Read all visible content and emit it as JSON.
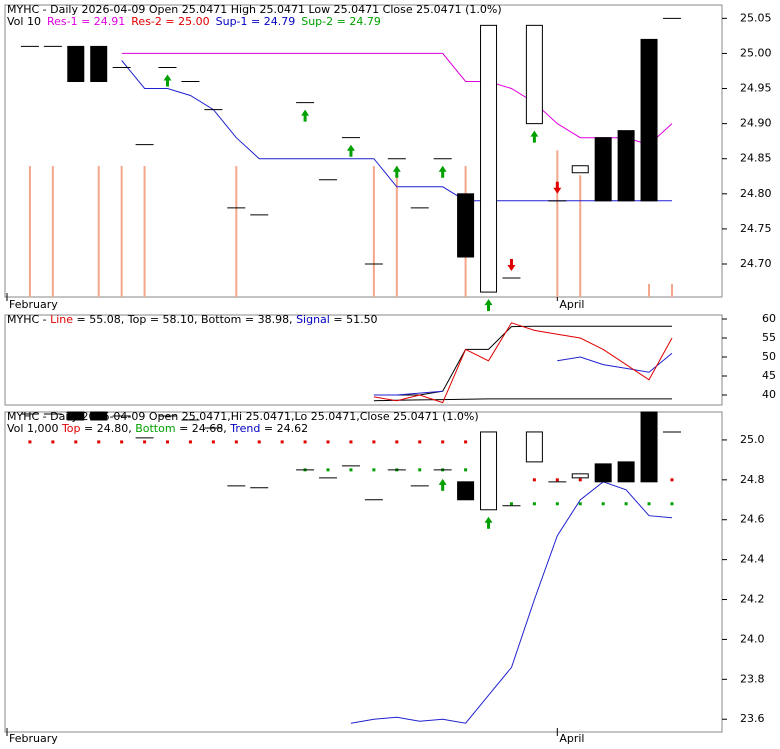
{
  "chart_data": [
    {
      "type": "candlestick",
      "header": [
        {
          "text": "MYHC - Daily 2026-04-09 Open 25.0471 High 25.0471 Low 25.0471 Close 25.0471 (1.0%)",
          "color": "#000000"
        }
      ],
      "header2": [
        {
          "text": "Vol 10",
          "color": "#000000"
        },
        {
          "text": "Res-1 = 24.91",
          "color": "#e000e0"
        },
        {
          "text": "Res-2 = 25.00",
          "color": "#e00000"
        },
        {
          "text": "Sup-1 = 24.79",
          "color": "#0000c0"
        },
        {
          "text": "Sup-2 = 24.79",
          "color": "#00a000"
        }
      ],
      "categories": [
        "February",
        null,
        null,
        null,
        null,
        null,
        null,
        null,
        null,
        null,
        null,
        null,
        null,
        null,
        null,
        null,
        null,
        null,
        null,
        null,
        null,
        null,
        null,
        null,
        "April",
        null,
        null,
        null,
        null,
        null
      ],
      "open": [
        null,
        25.01,
        25.01,
        25.01,
        25.01,
        24.98,
        24.87,
        24.98,
        24.96,
        24.92,
        24.78,
        24.77,
        null,
        24.93,
        24.82,
        24.88,
        24.7,
        24.85,
        24.78,
        24.85,
        24.8,
        24.66,
        24.68,
        24.9,
        24.79,
        24.83,
        24.88,
        24.89,
        25.02,
        25.05
      ],
      "close": [
        null,
        25.01,
        25.01,
        24.96,
        24.96,
        24.98,
        24.87,
        24.98,
        24.96,
        24.92,
        24.78,
        24.77,
        null,
        24.93,
        24.82,
        24.88,
        24.7,
        24.85,
        24.78,
        24.85,
        24.71,
        25.04,
        24.68,
        25.04,
        24.79,
        24.84,
        24.79,
        24.79,
        24.79,
        25.05
      ],
      "volume": [
        null,
        10,
        10,
        null,
        10,
        10,
        10,
        null,
        null,
        null,
        10,
        null,
        null,
        null,
        null,
        null,
        10,
        10,
        null,
        null,
        10,
        null,
        null,
        null,
        11.2,
        9.3,
        null,
        null,
        1,
        1
      ],
      "volume_color": "#f4a58a",
      "vlim": [
        0,
        22.3
      ],
      "lines": [
        {
          "color": "#e000e0",
          "style": "line",
          "values": [
            null,
            null,
            null,
            null,
            null,
            25.0,
            25.0,
            25.0,
            25.0,
            25.0,
            25.0,
            25.0,
            25.0,
            25.0,
            25.0,
            25.0,
            25.0,
            25.0,
            25.0,
            25.0,
            24.96,
            24.96,
            24.95,
            24.93,
            24.9,
            24.88,
            24.88,
            24.88,
            24.87,
            24.9
          ]
        },
        {
          "color": "#2020d0",
          "style": "line",
          "values": [
            null,
            null,
            null,
            null,
            null,
            24.99,
            24.95,
            24.95,
            24.94,
            24.92,
            24.88,
            24.85,
            24.85,
            24.85,
            24.85,
            24.85,
            24.85,
            24.81,
            24.81,
            24.81,
            24.79,
            24.79,
            24.79,
            24.79,
            24.79,
            24.79,
            24.79,
            24.79,
            24.79,
            24.79
          ]
        }
      ],
      "up_arrows": [
        null,
        null,
        null,
        null,
        null,
        null,
        null,
        24.96,
        null,
        null,
        null,
        null,
        null,
        24.91,
        null,
        24.86,
        null,
        24.83,
        null,
        24.83,
        null,
        24.64,
        null,
        24.88,
        null,
        null,
        null,
        null,
        null,
        null
      ],
      "down_arrows": [
        null,
        null,
        null,
        null,
        null,
        null,
        null,
        null,
        null,
        null,
        null,
        null,
        null,
        null,
        null,
        null,
        null,
        null,
        null,
        null,
        null,
        null,
        24.7,
        null,
        24.81,
        null,
        null,
        null,
        null,
        null
      ],
      "ylim": [
        24.653,
        25.069
      ],
      "yticks": [
        {
          "value": 24.7,
          "label": "24.70"
        },
        24.75,
        {
          "value": 24.8,
          "label": "24.80"
        },
        24.85,
        {
          "value": 24.9,
          "label": "24.90"
        },
        24.95,
        {
          "value": 25,
          "label": "25.00"
        },
        25.05
      ]
    },
    {
      "type": "line",
      "header": [
        {
          "text": "MYHC - ",
          "color": "#000000"
        },
        {
          "text": "Line",
          "color": "#e00000"
        },
        {
          "text": " = 55.08, Top = 58.10, Bottom = 38.98, ",
          "color": "#000000"
        },
        {
          "text": "Signal",
          "color": "#0000c0"
        },
        {
          "text": " = 51.50",
          "color": "#000000"
        }
      ],
      "lines": [
        {
          "color": "#000000",
          "style": "line",
          "values": [
            null,
            null,
            null,
            null,
            null,
            null,
            null,
            null,
            null,
            null,
            null,
            null,
            null,
            null,
            null,
            null,
            40,
            40,
            40,
            41,
            52,
            52,
            58,
            58.1,
            58.1,
            58.1,
            58.1,
            58.1,
            58.1,
            58.1
          ]
        },
        {
          "color": "#000000",
          "style": "line",
          "values": [
            null,
            null,
            null,
            null,
            null,
            null,
            null,
            null,
            null,
            null,
            null,
            null,
            null,
            null,
            null,
            null,
            38.5,
            38.6,
            38.7,
            38.8,
            38.9,
            38.98,
            38.98,
            38.98,
            38.98,
            38.98,
            38.98,
            38.98,
            38.98,
            38.98
          ]
        },
        {
          "color": "#2020d0",
          "style": "line",
          "values": [
            null,
            null,
            null,
            null,
            null,
            null,
            null,
            null,
            null,
            null,
            null,
            null,
            null,
            null,
            null,
            null,
            40,
            40,
            40.5,
            41,
            null,
            null,
            null,
            null,
            49,
            50,
            48,
            47,
            46,
            51
          ]
        },
        {
          "color": "#e00000",
          "style": "line",
          "values": [
            null,
            null,
            null,
            null,
            null,
            null,
            null,
            null,
            null,
            null,
            null,
            null,
            null,
            null,
            null,
            null,
            39.5,
            38.5,
            40,
            38,
            52,
            49,
            59,
            57,
            56,
            55,
            52,
            48,
            44,
            55
          ]
        }
      ],
      "ylim": [
        37.37,
        61.05
      ],
      "yticks": [
        40,
        45,
        50,
        55,
        60
      ]
    },
    {
      "type": "candlestick",
      "header": [
        {
          "text": "MYHC - Daily 2026-04-09 Open 25.0471,Hi 25.0471,Lo 25.0471,Close 25.0471 (1.0%)",
          "color": "#000000"
        }
      ],
      "header2": [
        {
          "text": "Vol 1,000 ",
          "color": "#000000"
        },
        {
          "text": "Top",
          "color": "#e00000"
        },
        {
          "text": " = 24.80, ",
          "color": "#000000"
        },
        {
          "text": "Bottom",
          "color": "#00a000"
        },
        {
          "text": " = 24.68, ",
          "color": "#000000"
        },
        {
          "text": "Trend",
          "color": "#0000c0"
        },
        {
          "text": " = 24.62",
          "color": "#000000"
        }
      ],
      "categories": [
        "February",
        null,
        null,
        null,
        null,
        null,
        null,
        null,
        null,
        null,
        null,
        null,
        null,
        null,
        null,
        null,
        null,
        null,
        null,
        null,
        null,
        null,
        null,
        null,
        "April",
        null,
        null,
        null,
        null,
        null
      ],
      "open": [
        null,
        25.13,
        25.13,
        25.14,
        25.14,
        25.12,
        25.01,
        25.12,
        25.1,
        25.06,
        24.77,
        24.76,
        null,
        24.85,
        24.81,
        24.87,
        24.7,
        24.85,
        24.77,
        24.85,
        24.79,
        24.65,
        24.67,
        24.89,
        24.79,
        24.81,
        24.88,
        24.89,
        25.14,
        25.04
      ],
      "close": [
        null,
        25.13,
        25.13,
        25.1,
        25.1,
        25.12,
        25.01,
        25.12,
        25.1,
        25.06,
        24.77,
        24.76,
        null,
        24.85,
        24.81,
        24.87,
        24.7,
        24.85,
        24.77,
        24.85,
        24.7,
        25.04,
        24.67,
        25.04,
        24.79,
        24.83,
        24.79,
        24.79,
        24.79,
        25.04
      ],
      "lines": [
        {
          "color": "#e00000",
          "style": "dots",
          "values": [
            null,
            24.99,
            24.99,
            24.99,
            24.99,
            24.99,
            24.99,
            24.99,
            24.99,
            24.99,
            24.99,
            24.99,
            24.99,
            24.99,
            24.99,
            24.99,
            24.99,
            24.99,
            24.99,
            24.99,
            24.99,
            null,
            null,
            24.8,
            24.8,
            24.8,
            24.8,
            24.8,
            24.8,
            24.8
          ]
        },
        {
          "color": "#00a000",
          "style": "dots",
          "values": [
            null,
            null,
            null,
            null,
            null,
            null,
            null,
            null,
            null,
            null,
            null,
            null,
            null,
            24.85,
            24.85,
            24.85,
            24.85,
            24.85,
            24.85,
            24.85,
            24.85,
            24.68,
            24.68,
            24.68,
            24.68,
            24.68,
            24.68,
            24.68,
            24.68,
            24.68
          ]
        },
        {
          "color": "#2020d0",
          "style": "line",
          "values": [
            null,
            null,
            null,
            null,
            null,
            null,
            null,
            null,
            null,
            null,
            null,
            null,
            null,
            null,
            null,
            23.58,
            23.6,
            23.61,
            23.59,
            23.6,
            23.58,
            23.72,
            23.86,
            24.2,
            24.52,
            24.7,
            24.79,
            24.75,
            24.62,
            24.61
          ]
        }
      ],
      "up_arrows": [
        null,
        null,
        null,
        null,
        null,
        null,
        null,
        null,
        null,
        null,
        null,
        null,
        null,
        null,
        null,
        null,
        null,
        null,
        null,
        24.77,
        null,
        24.58,
        null,
        null,
        null,
        null,
        null,
        null,
        null,
        null
      ],
      "ylim": [
        23.536,
        25.14
      ],
      "yticks": [
        23.6,
        23.8,
        {
          "value": 24,
          "label": "24.0"
        },
        24.2,
        24.4,
        24.6,
        24.8,
        {
          "value": 25,
          "label": "25.0"
        }
      ]
    }
  ]
}
